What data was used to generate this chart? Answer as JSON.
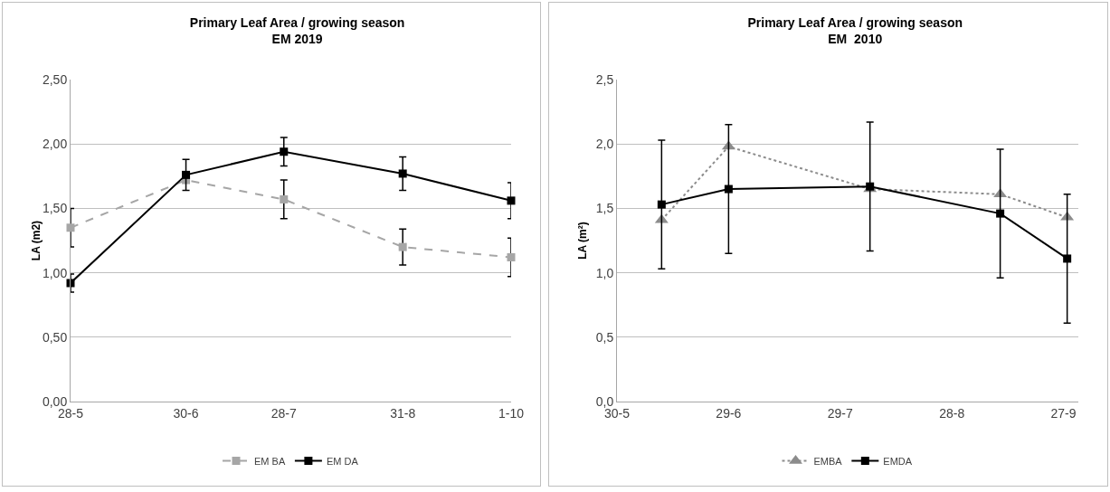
{
  "chart_data": [
    {
      "type": "line",
      "title": "Primary Leaf Area / growing season\nEM 2019",
      "ylabel": "LA (m2)",
      "xlim": [
        "--05-28",
        "--10-01"
      ],
      "xticks": [
        {
          "value": "--05-28",
          "label": "28-5"
        },
        {
          "value": "--06-30",
          "label": "30-6"
        },
        {
          "value": "--07-28",
          "label": "28-7"
        },
        {
          "value": "--08-31",
          "label": "31-8"
        },
        {
          "value": "--10-01",
          "label": "1-10"
        }
      ],
      "ylim": [
        0,
        2.5
      ],
      "yticks": [
        {
          "value": 0,
          "label": "0,00"
        },
        {
          "value": 0.5,
          "label": "0,50"
        },
        {
          "value": 1,
          "label": "1,00"
        },
        {
          "value": 1.5,
          "label": "1,50"
        },
        {
          "value": 2,
          "label": "2,00"
        },
        {
          "value": 2.5,
          "label": "2,50"
        }
      ],
      "grid": "y",
      "legend": "bottom",
      "x": [
        "--05-28",
        "--06-30",
        "--07-28",
        "--08-31",
        "--10-01"
      ],
      "series": [
        {
          "name": "EM BA",
          "color": "#a6a6a6",
          "marker": "square",
          "line_style": "dashed",
          "values": [
            1.35,
            1.72,
            1.57,
            1.2,
            1.12
          ],
          "errors": [
            0.15,
            null,
            0.15,
            0.14,
            0.15
          ]
        },
        {
          "name": "EM DA",
          "color": "#000000",
          "marker": "square",
          "line_style": "solid",
          "values": [
            0.92,
            1.76,
            1.94,
            1.77,
            1.56
          ],
          "errors": [
            0.07,
            0.12,
            0.11,
            0.13,
            0.14
          ]
        }
      ]
    },
    {
      "type": "line",
      "title": "Primary Leaf Area / growing season\nEM  2010",
      "ylabel": "LA (m²)",
      "xlim": [
        "--05-30",
        "--10-01"
      ],
      "xticks": [
        {
          "value": "--05-30",
          "label": "30-5"
        },
        {
          "value": "--06-29",
          "label": "29-6"
        },
        {
          "value": "--07-29",
          "label": "29-7"
        },
        {
          "value": "--08-28",
          "label": "28-8"
        },
        {
          "value": "--09-27",
          "label": "27-9"
        }
      ],
      "ylim": [
        0,
        2.5
      ],
      "yticks": [
        {
          "value": 0,
          "label": "0,0"
        },
        {
          "value": 0.5,
          "label": "0,5"
        },
        {
          "value": 1,
          "label": "1,0"
        },
        {
          "value": 1.5,
          "label": "1,5"
        },
        {
          "value": 2,
          "label": "2,0"
        },
        {
          "value": 2.5,
          "label": "2,5"
        }
      ],
      "grid": "y",
      "legend": "bottom",
      "x": [
        "--06-11",
        "--06-29",
        "--08-06",
        "--09-10",
        "--09-28"
      ],
      "series": [
        {
          "name": "EMBA",
          "color": "#8c8c8c",
          "marker": "triangle",
          "line_style": "dotted",
          "values": [
            1.41,
            1.98,
            1.65,
            1.61,
            1.43
          ]
        },
        {
          "name": "EMDA",
          "color": "#000000",
          "marker": "square",
          "line_style": "solid",
          "values": [
            1.53,
            1.65,
            1.67,
            1.46,
            1.11
          ],
          "errors": [
            0.5,
            0.5,
            0.5,
            0.5,
            0.5
          ]
        }
      ]
    }
  ]
}
